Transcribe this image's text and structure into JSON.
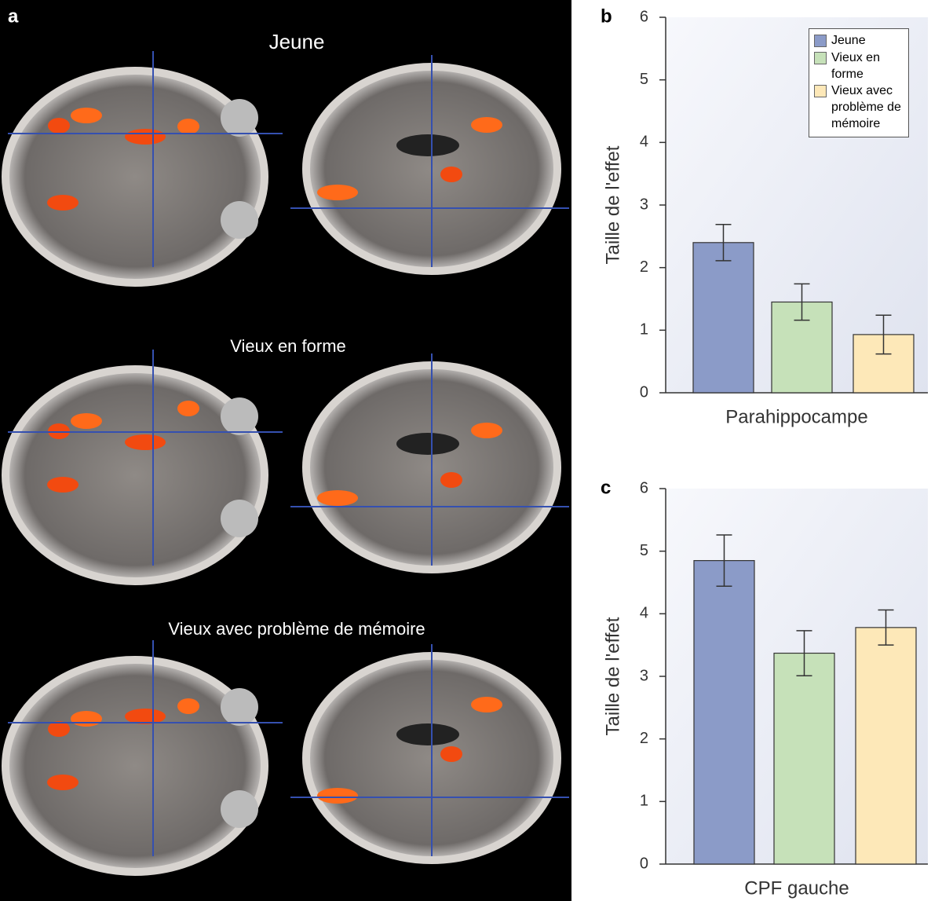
{
  "panel_a": {
    "label": "a",
    "titles": [
      "Jeune",
      "Vieux en forme",
      "Vieux avec problème de mémoire"
    ]
  },
  "chart_data": [
    {
      "type": "bar",
      "panel": "b",
      "ylabel": "Taille de l'effet",
      "categories": [
        "Parahippocampe"
      ],
      "ylim": [
        0,
        6
      ],
      "yticks": [
        0,
        1,
        2,
        3,
        4,
        5,
        6
      ],
      "legend": "upper right",
      "series": [
        {
          "name": "Jeune",
          "color": "#8b9bc8",
          "values": [
            2.4
          ],
          "errors": [
            0.29
          ]
        },
        {
          "name": "Vieux en forme",
          "color": "#c6e1b9",
          "values": [
            1.45
          ],
          "errors": [
            0.29
          ]
        },
        {
          "name": "Vieux avec problème de mémoire",
          "color": "#fde8b8",
          "values": [
            0.93
          ],
          "errors": [
            0.31
          ]
        }
      ]
    },
    {
      "type": "bar",
      "panel": "c",
      "ylabel": "Taille de l'effet",
      "categories": [
        "CPF gauche"
      ],
      "ylim": [
        0,
        6
      ],
      "yticks": [
        0,
        1,
        2,
        3,
        4,
        5,
        6
      ],
      "series": [
        {
          "color": "#8b9bc8",
          "values": [
            4.85
          ],
          "errors": [
            0.41
          ]
        },
        {
          "color": "#c6e1b9",
          "values": [
            3.37
          ],
          "errors": [
            0.36
          ]
        },
        {
          "color": "#fde8b8",
          "values": [
            3.78
          ],
          "errors": [
            0.28
          ]
        }
      ]
    }
  ]
}
